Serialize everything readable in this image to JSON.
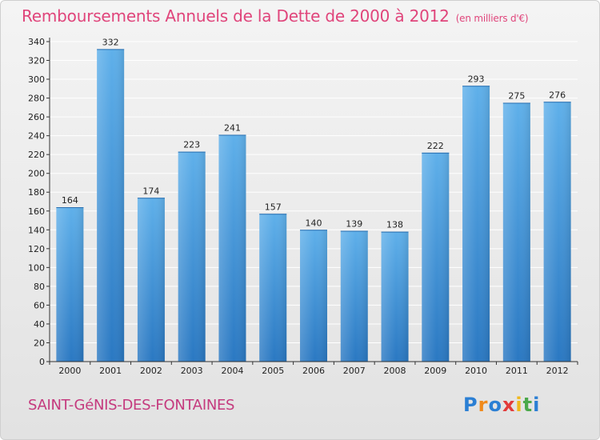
{
  "title": "Remboursements Annuels de la Dette de 2000 à 2012",
  "subtitle": "(en milliers d'€)",
  "commune": "SAINT-GéNIS-DES-FONTAINES",
  "logo": {
    "text": "Proxiti",
    "letters": [
      {
        "ch": "P",
        "color": "#2b7fd4"
      },
      {
        "ch": "r",
        "color": "#f08a1c"
      },
      {
        "ch": "o",
        "color": "#2b7fd4"
      },
      {
        "ch": "x",
        "color": "#e23b3b"
      },
      {
        "ch": "i",
        "color": "#f0b81c"
      },
      {
        "ch": "t",
        "color": "#4aa84a"
      },
      {
        "ch": "i",
        "color": "#2b7fd4"
      }
    ]
  },
  "colors": {
    "title": "#e0457b",
    "bar_top": "#5fb0ea",
    "bar_bottom": "#2a78c2",
    "grid": "#ffffff",
    "axis": "#333333"
  },
  "chart_data": {
    "type": "bar",
    "categories": [
      "2000",
      "2001",
      "2002",
      "2003",
      "2004",
      "2005",
      "2006",
      "2007",
      "2008",
      "2009",
      "2010",
      "2011",
      "2012"
    ],
    "values": [
      164,
      332,
      174,
      223,
      241,
      157,
      140,
      139,
      138,
      222,
      293,
      275,
      276
    ],
    "ylim": [
      0,
      340
    ],
    "yticks": [
      0,
      20,
      40,
      60,
      80,
      100,
      120,
      140,
      160,
      180,
      200,
      220,
      240,
      260,
      280,
      300,
      320,
      340
    ],
    "grid": true,
    "xlabel": "",
    "ylabel": ""
  }
}
